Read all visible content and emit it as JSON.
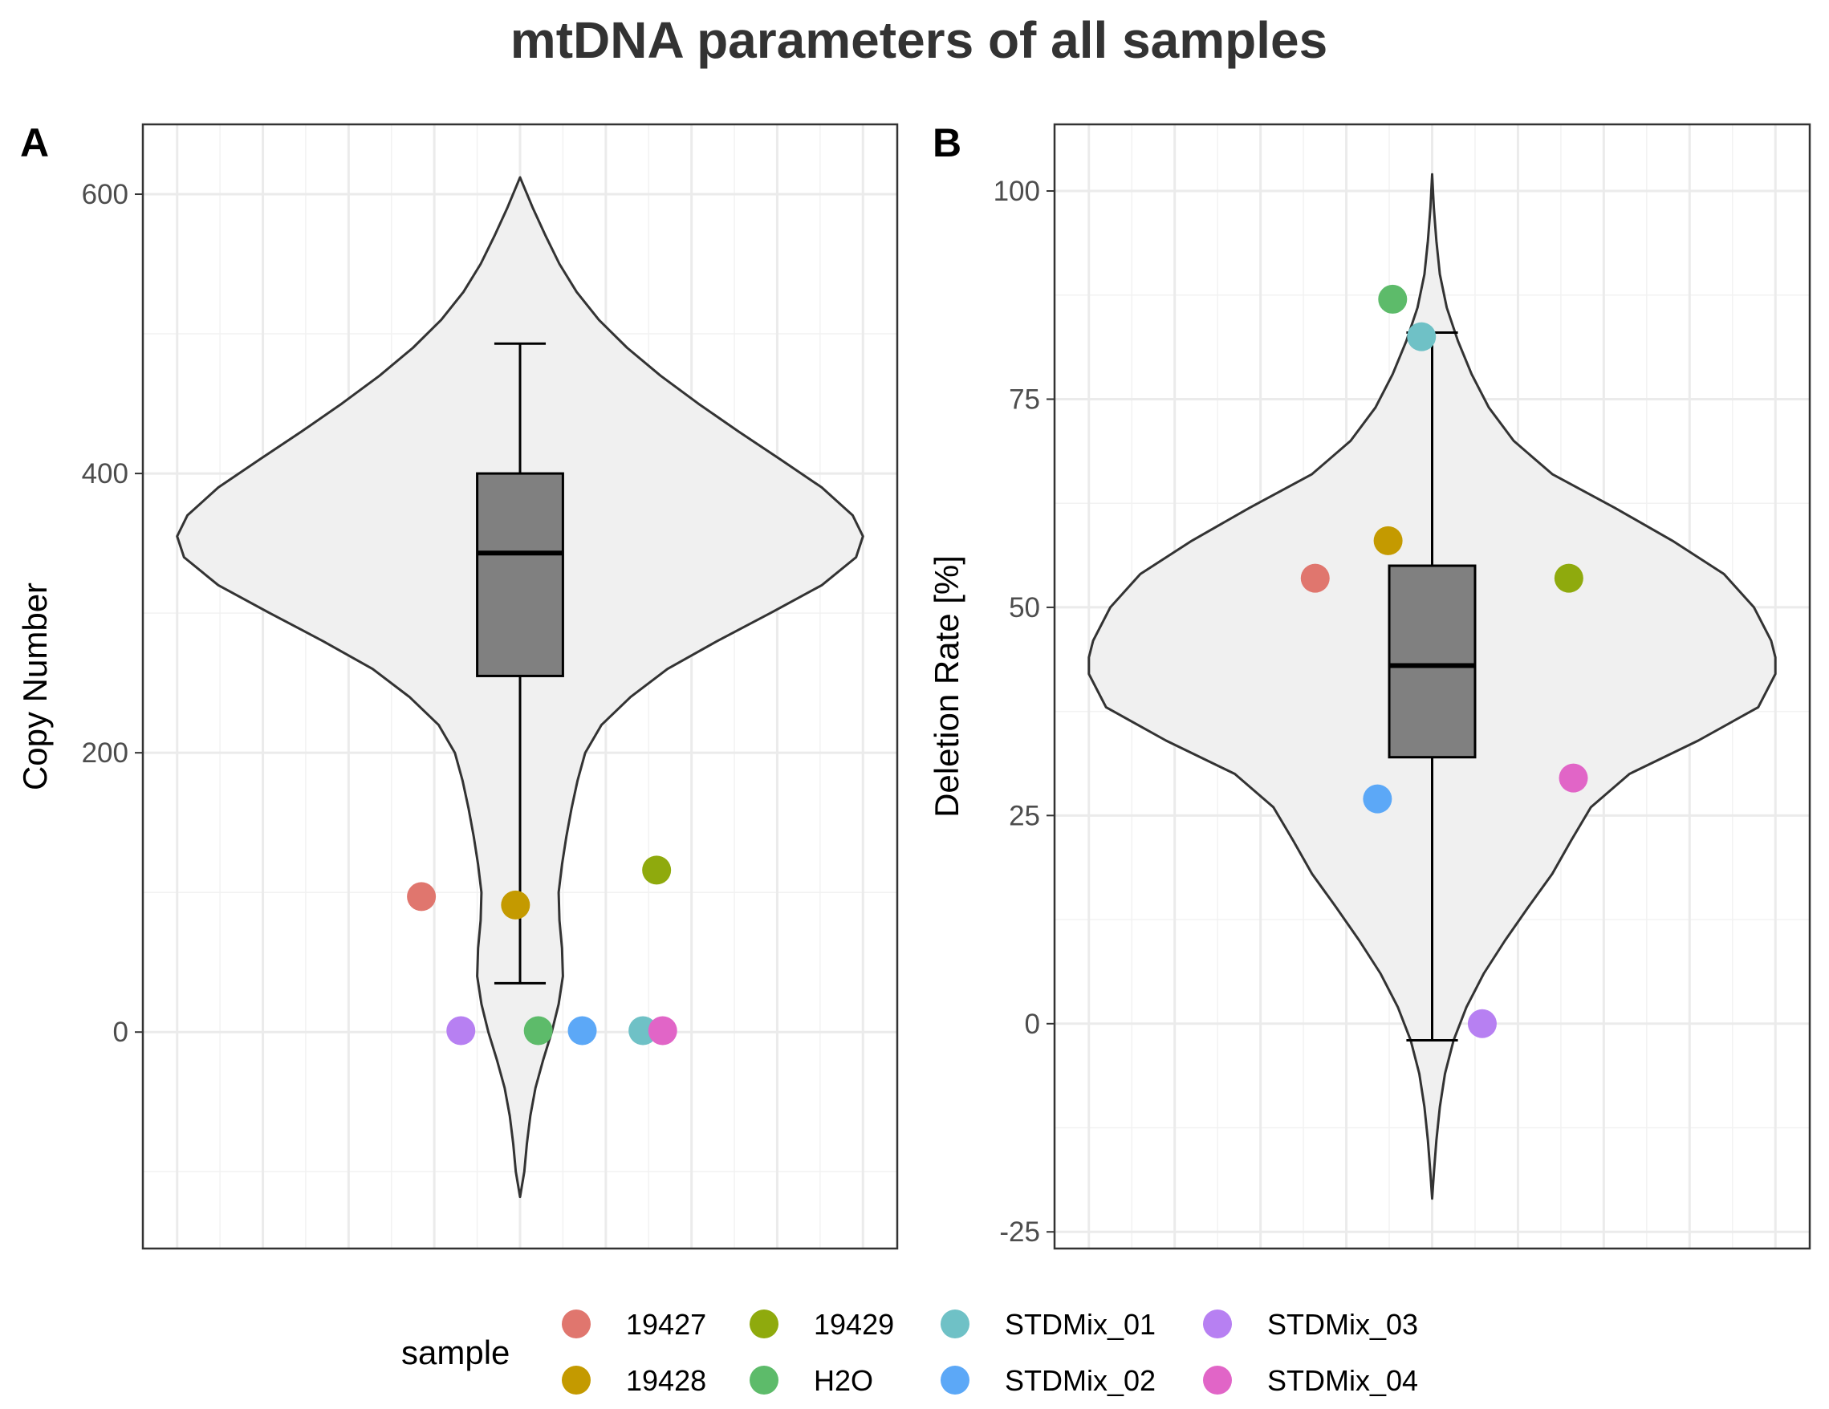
{
  "title": "mtDNA parameters of all samples",
  "legend": {
    "title": "sample",
    "entries": [
      {
        "label": "19427",
        "color": "#E0766E"
      },
      {
        "label": "19428",
        "color": "#C49A00"
      },
      {
        "label": "19429",
        "color": "#8FAA0D"
      },
      {
        "label": "H2O",
        "color": "#5DBB6A"
      },
      {
        "label": "STDMix_01",
        "color": "#6FC1C6"
      },
      {
        "label": "STDMix_02",
        "color": "#5CA8F7"
      },
      {
        "label": "STDMix_03",
        "color": "#B780F2"
      },
      {
        "label": "STDMix_04",
        "color": "#E165C7"
      }
    ]
  },
  "chart_data": [
    {
      "panel": "A",
      "type": "violin+boxplot+jitter",
      "ylabel": "Copy Number",
      "xlabel": "",
      "ylim": [
        -155,
        650
      ],
      "yticks": [
        0,
        200,
        400,
        600
      ],
      "yticklabels": [
        "0",
        "200",
        "400",
        "600"
      ],
      "grid": true,
      "box": {
        "ymin": 35,
        "q1": 255,
        "median": 343,
        "q3": 400,
        "ymax": 493
      },
      "violin": {
        "y": [
          -118,
          -100,
          -80,
          -60,
          -40,
          -20,
          0,
          20,
          40,
          60,
          80,
          100,
          120,
          140,
          160,
          180,
          200,
          220,
          240,
          260,
          280,
          300,
          320,
          340,
          355,
          370,
          390,
          410,
          430,
          450,
          470,
          490,
          510,
          530,
          550,
          570,
          590,
          612
        ],
        "halfwidth": [
          0,
          0.05,
          0.08,
          0.12,
          0.18,
          0.27,
          0.37,
          0.45,
          0.5,
          0.49,
          0.46,
          0.45,
          0.49,
          0.54,
          0.6,
          0.67,
          0.76,
          0.95,
          1.29,
          1.72,
          2.3,
          2.92,
          3.52,
          3.92,
          4.0,
          3.88,
          3.52,
          3.04,
          2.55,
          2.08,
          1.64,
          1.25,
          0.92,
          0.66,
          0.46,
          0.3,
          0.15,
          0
        ]
      },
      "points": [
        {
          "sample": "19427",
          "y": 97,
          "jitter": -0.65
        },
        {
          "sample": "19428",
          "y": 91,
          "jitter": -0.03
        },
        {
          "sample": "19429",
          "y": 116,
          "jitter": 0.9
        },
        {
          "sample": "H2O",
          "y": 1,
          "jitter": 0.12
        },
        {
          "sample": "STDMix_01",
          "y": 1,
          "jitter": 0.81
        },
        {
          "sample": "STDMix_02",
          "y": 1,
          "jitter": 0.41
        },
        {
          "sample": "STDMix_03",
          "y": 1,
          "jitter": -0.39
        },
        {
          "sample": "STDMix_04",
          "y": 1,
          "jitter": 0.94
        }
      ]
    },
    {
      "panel": "B",
      "type": "violin+boxplot+jitter",
      "ylabel": "Deletion Rate [%]",
      "xlabel": "",
      "ylim": [
        -27,
        108
      ],
      "yticks": [
        -25,
        0,
        25,
        50,
        75,
        100
      ],
      "yticklabels": [
        "-25",
        "0",
        "25",
        "50",
        "75",
        "100"
      ],
      "grid": true,
      "box": {
        "ymin": -2,
        "q1": 32,
        "median": 43,
        "q3": 55,
        "ymax": 83
      },
      "violin": {
        "y": [
          -21,
          -18,
          -14,
          -10,
          -6,
          -2,
          2,
          6,
          10,
          14,
          18,
          22,
          26,
          30,
          34,
          38,
          42,
          44,
          46,
          50,
          54,
          58,
          62,
          66,
          70,
          74,
          78,
          82,
          86,
          90,
          94,
          98,
          102
        ],
        "halfwidth": [
          0,
          0.02,
          0.05,
          0.09,
          0.15,
          0.25,
          0.4,
          0.6,
          0.85,
          1.12,
          1.4,
          1.62,
          1.85,
          2.3,
          3.1,
          3.8,
          4.0,
          4.0,
          3.95,
          3.75,
          3.4,
          2.8,
          2.12,
          1.4,
          0.95,
          0.66,
          0.46,
          0.3,
          0.17,
          0.09,
          0.05,
          0.02,
          0
        ]
      },
      "points": [
        {
          "sample": "19427",
          "y": 53.5,
          "jitter": -0.77
        },
        {
          "sample": "19428",
          "y": 58,
          "jitter": -0.29
        },
        {
          "sample": "19429",
          "y": 53.5,
          "jitter": 0.9
        },
        {
          "sample": "H2O",
          "y": 87,
          "jitter": -0.26
        },
        {
          "sample": "STDMix_01",
          "y": 82.5,
          "jitter": -0.07
        },
        {
          "sample": "STDMix_02",
          "y": 27,
          "jitter": -0.36
        },
        {
          "sample": "STDMix_03",
          "y": 0,
          "jitter": 0.33
        },
        {
          "sample": "STDMix_04",
          "y": 29.5,
          "jitter": 0.93
        }
      ]
    }
  ]
}
